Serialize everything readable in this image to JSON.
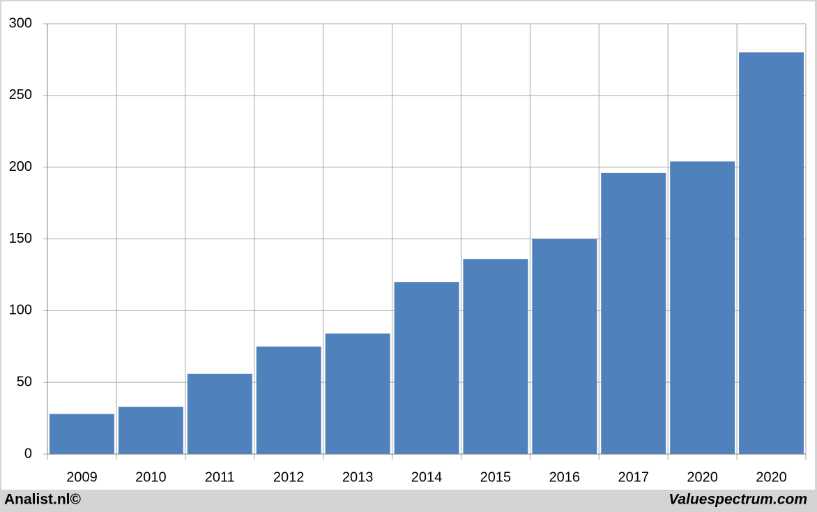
{
  "chart_data": {
    "type": "bar",
    "categories": [
      "2009",
      "2010",
      "2011",
      "2012",
      "2013",
      "2014",
      "2015",
      "2016",
      "2017",
      "2020",
      "2020"
    ],
    "values": [
      28,
      33,
      56,
      75,
      84,
      120,
      136,
      150,
      196,
      204,
      280
    ],
    "color": "#4f81bd",
    "ylim": [
      0,
      300
    ],
    "yticks": [
      0,
      50,
      100,
      150,
      200,
      250,
      300
    ],
    "grid": true,
    "footer_left": "Analist.nl©",
    "footer_right": "Valuespectrum.com"
  }
}
